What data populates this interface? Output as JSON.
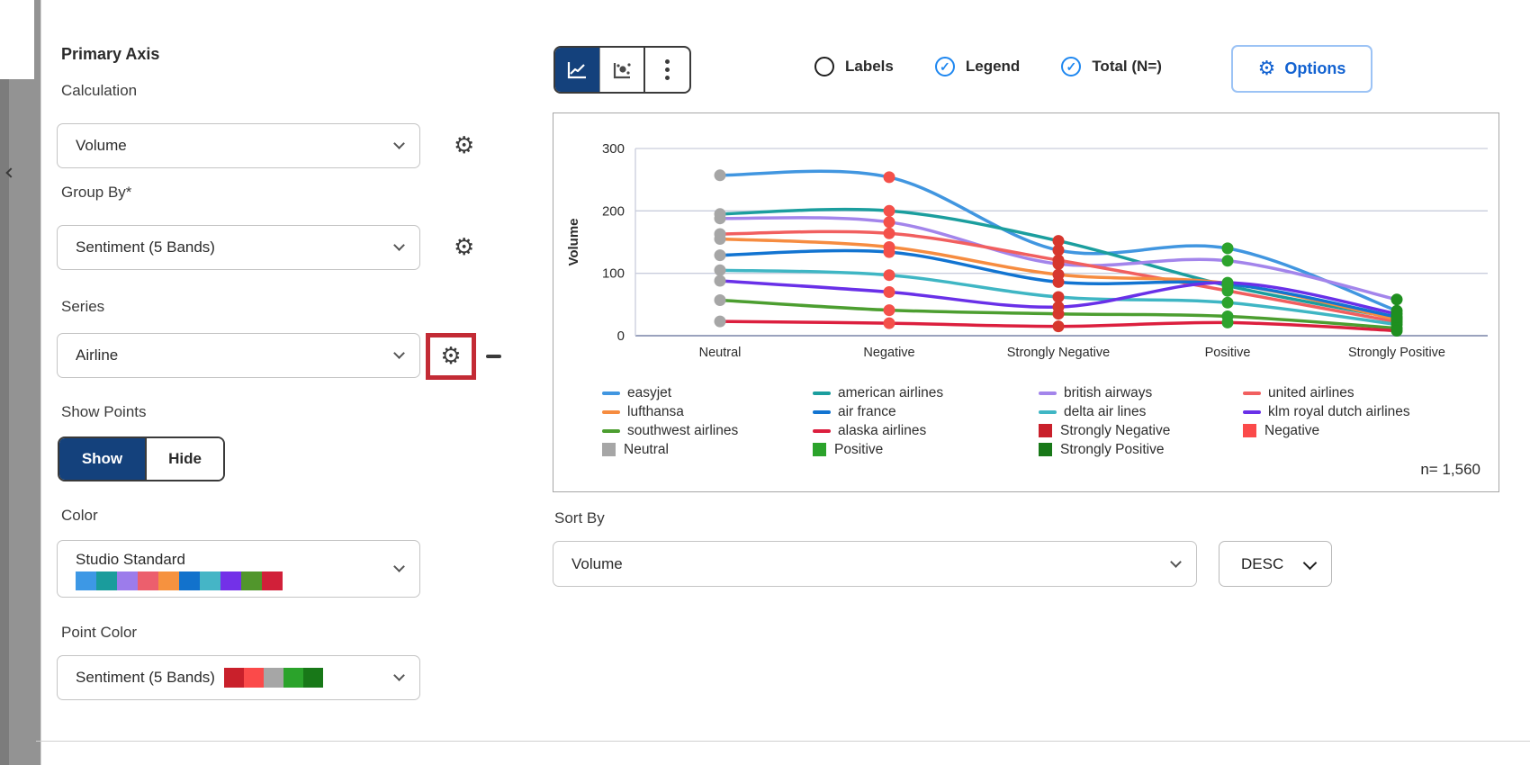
{
  "sidebar": {
    "collapse": "collapse-panel"
  },
  "panel": {
    "title": "Primary Axis",
    "fields": [
      {
        "label": "Calculation",
        "value": "Volume"
      },
      {
        "label": "Group By*",
        "value": "Sentiment (5 Bands)"
      },
      {
        "label": "Series",
        "value": "Airline"
      }
    ],
    "show_points": {
      "label": "Show Points",
      "show": "Show",
      "hide": "Hide",
      "selected": "Show"
    },
    "color": {
      "label": "Color",
      "value": "Studio Standard",
      "palette": [
        "#3d98e5",
        "#1a9c9c",
        "#9c7ceb",
        "#ec5f6d",
        "#f6923f",
        "#1272cc",
        "#45b5c6",
        "#7331e8",
        "#51962c",
        "#d12039"
      ]
    },
    "point_color": {
      "label": "Point Color",
      "value": "Sentiment (5 Bands)",
      "palette": [
        "#c9202b",
        "#fb4a4a",
        "#a6a6a6",
        "#2ba32b",
        "#187818"
      ]
    }
  },
  "toolbar": {
    "toggles": [
      {
        "label": "Labels",
        "checked": false
      },
      {
        "label": "Legend",
        "checked": true
      },
      {
        "label": "Total (N=)",
        "checked": true
      }
    ],
    "options_label": "Options"
  },
  "chart_data": {
    "type": "line",
    "title": "",
    "xlabel": "",
    "ylabel": "Volume",
    "ylim": [
      0,
      300
    ],
    "yticks": [
      0,
      100,
      200,
      300
    ],
    "grid": true,
    "legend_position": "bottom",
    "categories": [
      "Neutral",
      "Negative",
      "Strongly Negative",
      "Positive",
      "Strongly Positive"
    ],
    "series": [
      {
        "name": "easyjet",
        "color": "#4196e0",
        "values": [
          257,
          254,
          137,
          140,
          40
        ]
      },
      {
        "name": "american airlines",
        "color": "#1b9e9e",
        "values": [
          195,
          200,
          152,
          80,
          28
        ]
      },
      {
        "name": "british airways",
        "color": "#a385eb",
        "values": [
          188,
          182,
          115,
          120,
          58
        ]
      },
      {
        "name": "united airlines",
        "color": "#f15f5f",
        "values": [
          163,
          164,
          121,
          72,
          22
        ]
      },
      {
        "name": "lufthansa",
        "color": "#f68c40",
        "values": [
          155,
          142,
          98,
          84,
          26
        ]
      },
      {
        "name": "air france",
        "color": "#1274d1",
        "values": [
          129,
          134,
          86,
          83,
          30
        ]
      },
      {
        "name": "delta air lines",
        "color": "#3fb6c4",
        "values": [
          105,
          97,
          62,
          53,
          18
        ]
      },
      {
        "name": "klm royal dutch airlines",
        "color": "#6930e8",
        "values": [
          88,
          70,
          46,
          85,
          35
        ]
      },
      {
        "name": "southwest airlines",
        "color": "#4c9e30",
        "values": [
          57,
          41,
          35,
          31,
          12
        ]
      },
      {
        "name": "alaska airlines",
        "color": "#dc1f3e",
        "values": [
          23,
          20,
          15,
          21,
          8
        ]
      }
    ],
    "point_colors_by_category": [
      "#a6a6a6",
      "#f4504a",
      "#d6372e",
      "#2da32d",
      "#1f8f1f"
    ],
    "legend_columns": [
      [
        {
          "label": "easyjet",
          "swatch": "line",
          "color": "#4196e0"
        },
        {
          "label": "lufthansa",
          "swatch": "line",
          "color": "#f68c40"
        },
        {
          "label": "southwest airlines",
          "swatch": "line",
          "color": "#4c9e30"
        },
        {
          "label": "Neutral",
          "swatch": "square",
          "color": "#a6a6a6"
        }
      ],
      [
        {
          "label": "american airlines",
          "swatch": "line",
          "color": "#1b9e9e"
        },
        {
          "label": "air france",
          "swatch": "line",
          "color": "#1274d1"
        },
        {
          "label": "alaska airlines",
          "swatch": "line",
          "color": "#dc1f3e"
        },
        {
          "label": "Positive",
          "swatch": "square",
          "color": "#2ba32b"
        }
      ],
      [
        {
          "label": "british airways",
          "swatch": "line",
          "color": "#a385eb"
        },
        {
          "label": "delta air lines",
          "swatch": "line",
          "color": "#3fb6c4"
        },
        {
          "label": "Strongly Negative",
          "swatch": "square",
          "color": "#c9202b"
        },
        {
          "label": "Strongly Positive",
          "swatch": "square",
          "color": "#187818"
        }
      ],
      [
        {
          "label": "united airlines",
          "swatch": "line",
          "color": "#f15f5f"
        },
        {
          "label": "klm royal dutch airlines",
          "swatch": "line",
          "color": "#6930e8"
        },
        {
          "label": "Negative",
          "swatch": "square",
          "color": "#fb4a4a"
        }
      ]
    ],
    "total_label": "n= 1,560"
  },
  "sort": {
    "label": "Sort By",
    "value": "Volume",
    "direction": "DESC"
  }
}
